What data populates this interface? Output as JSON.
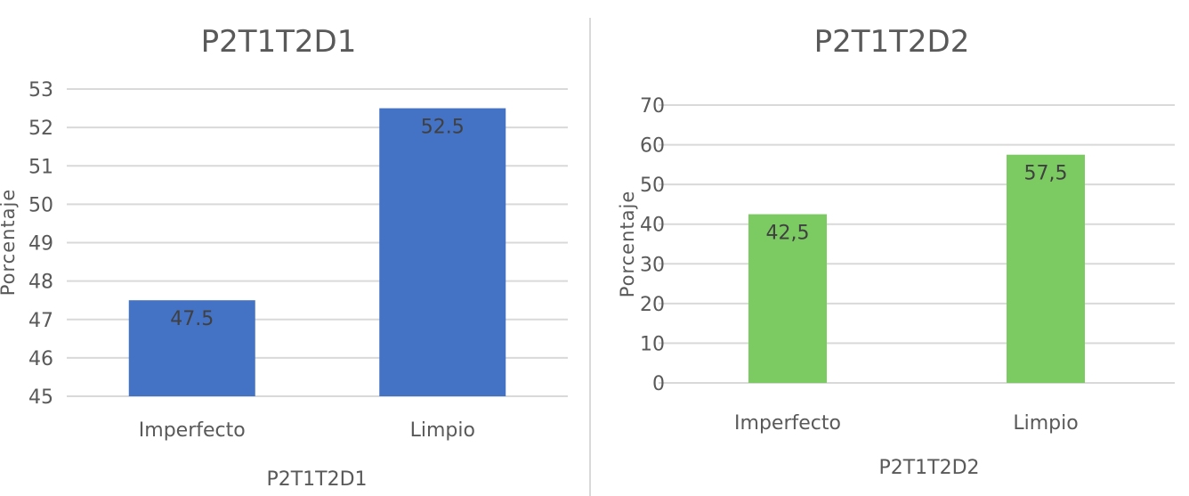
{
  "chart_data": [
    {
      "type": "bar",
      "title": "P2T1T2D1",
      "xlabel": "P2T1T2D1",
      "ylabel": "Porcentaje",
      "categories": [
        "Imperfecto",
        "Limpio"
      ],
      "values": [
        47.5,
        52.5
      ],
      "data_labels": [
        "47.5",
        "52.5"
      ],
      "ylim": [
        45,
        53
      ],
      "yticks": [
        "45",
        "46",
        "47",
        "48",
        "49",
        "50",
        "51",
        "52",
        "53"
      ],
      "bar_color": "#4472c4",
      "grid": true
    },
    {
      "type": "bar",
      "title": "P2T1T2D2",
      "xlabel": "P2T1T2D2",
      "ylabel": "Porcentaje",
      "categories": [
        "Imperfecto",
        "Limpio"
      ],
      "values": [
        42.5,
        57.5
      ],
      "data_labels": [
        "42,5",
        "57,5"
      ],
      "ylim": [
        0,
        70
      ],
      "yticks": [
        "0",
        "10",
        "20",
        "30",
        "40",
        "50",
        "60",
        "70"
      ],
      "bar_color": "#7cca62",
      "grid": true
    }
  ],
  "divider_color": "#d9d9d9"
}
